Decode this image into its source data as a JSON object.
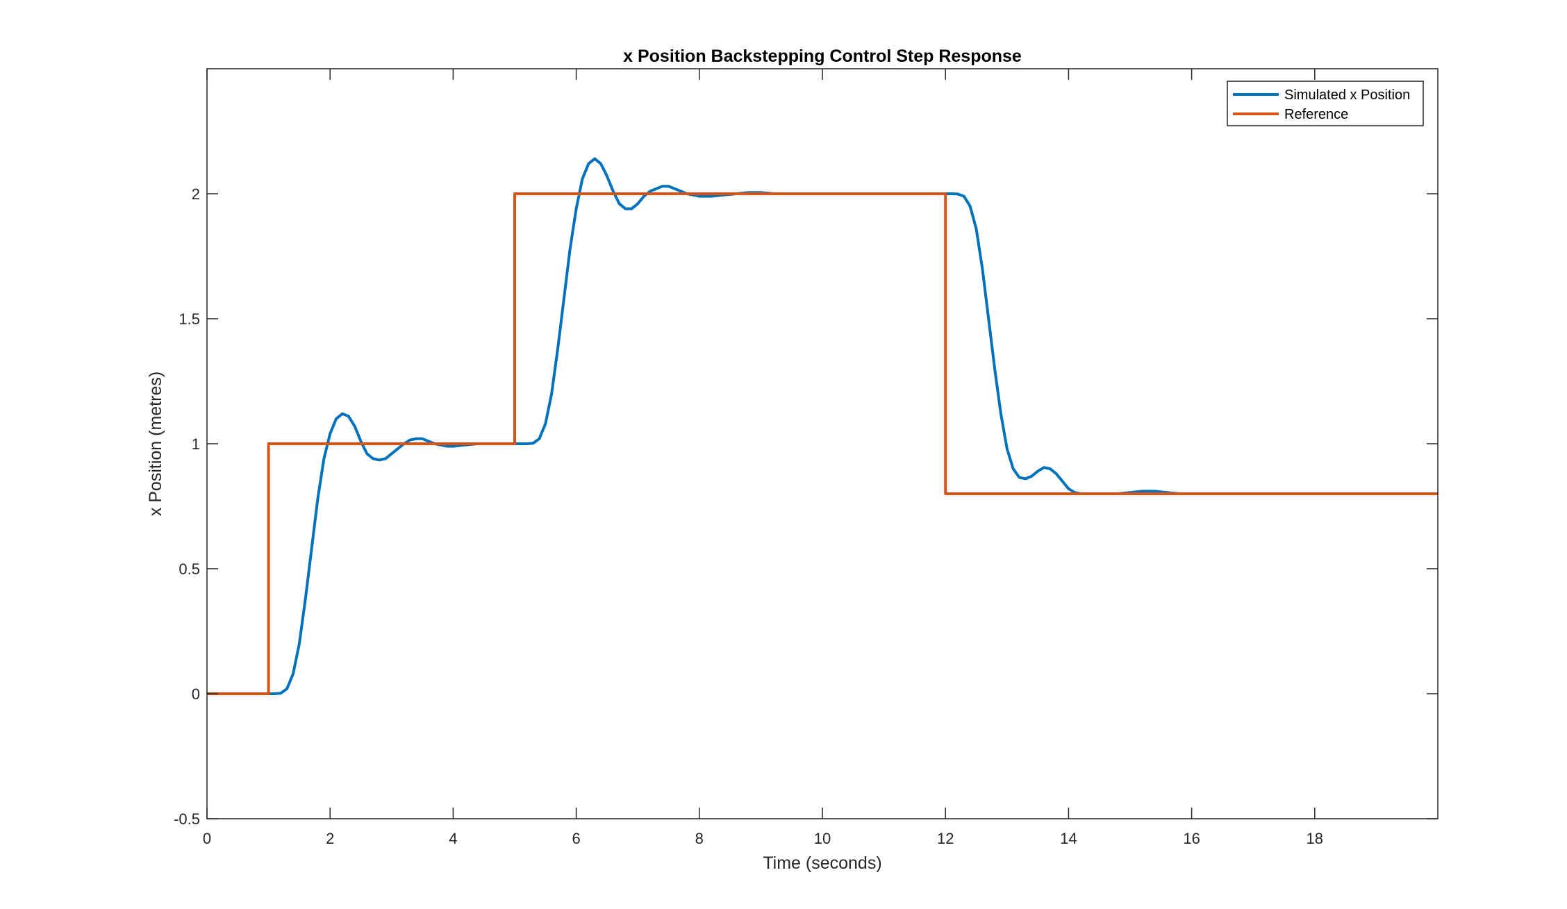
{
  "chart_data": {
    "type": "line",
    "title": "x Position Backstepping Control Step Response",
    "xlabel": "Time (seconds)",
    "ylabel": "x Position (metres)",
    "xlim": [
      0,
      20
    ],
    "ylim": [
      -0.5,
      2.5
    ],
    "xticks": [
      0,
      2,
      4,
      6,
      8,
      10,
      12,
      14,
      16,
      18
    ],
    "yticks": [
      -0.5,
      0,
      0.5,
      1,
      1.5,
      2
    ],
    "xtick_labels": [
      "0",
      "2",
      "4",
      "6",
      "8",
      "10",
      "12",
      "14",
      "16",
      "18"
    ],
    "ytick_labels": [
      "-0.5",
      "0",
      "0.5",
      "1",
      "1.5",
      "2"
    ],
    "grid": false,
    "legend_position": "top-right",
    "series": [
      {
        "name": "Simulated x Position",
        "color": "#0072BD",
        "x": [
          0,
          1.0,
          1.1,
          1.2,
          1.3,
          1.4,
          1.5,
          1.6,
          1.7,
          1.8,
          1.9,
          2.0,
          2.1,
          2.2,
          2.3,
          2.4,
          2.5,
          2.6,
          2.7,
          2.8,
          2.9,
          3.0,
          3.1,
          3.2,
          3.3,
          3.4,
          3.5,
          3.6,
          3.7,
          3.8,
          3.9,
          4.0,
          4.2,
          4.4,
          4.6,
          4.8,
          5.0,
          5.1,
          5.2,
          5.3,
          5.4,
          5.5,
          5.6,
          5.7,
          5.8,
          5.9,
          6.0,
          6.1,
          6.2,
          6.3,
          6.4,
          6.5,
          6.6,
          6.7,
          6.8,
          6.9,
          7.0,
          7.1,
          7.2,
          7.3,
          7.4,
          7.5,
          7.6,
          7.7,
          7.8,
          7.9,
          8.0,
          8.2,
          8.4,
          8.6,
          8.8,
          9.0,
          9.2,
          9.4,
          9.6,
          9.8,
          10.0,
          11.0,
          12.0,
          12.1,
          12.2,
          12.3,
          12.4,
          12.5,
          12.6,
          12.7,
          12.8,
          12.9,
          13.0,
          13.1,
          13.2,
          13.3,
          13.4,
          13.5,
          13.6,
          13.7,
          13.8,
          13.9,
          14.0,
          14.1,
          14.2,
          14.3,
          14.4,
          14.5,
          14.6,
          14.7,
          14.8,
          15.0,
          15.2,
          15.4,
          15.6,
          15.8,
          16.0,
          16.4,
          16.8,
          17.2,
          17.6,
          18.0,
          19.0,
          20.0
        ],
        "y": [
          0,
          0,
          0.0,
          0.002,
          0.02,
          0.08,
          0.2,
          0.38,
          0.58,
          0.78,
          0.94,
          1.04,
          1.1,
          1.12,
          1.11,
          1.07,
          1.01,
          0.96,
          0.94,
          0.935,
          0.94,
          0.96,
          0.98,
          1.0,
          1.015,
          1.02,
          1.02,
          1.01,
          1.0,
          0.995,
          0.99,
          0.99,
          0.995,
          1.0,
          1.0,
          1.0,
          1.0,
          1.0,
          1.0,
          1.002,
          1.02,
          1.08,
          1.2,
          1.38,
          1.58,
          1.78,
          1.94,
          2.06,
          2.12,
          2.14,
          2.12,
          2.07,
          2.01,
          1.96,
          1.94,
          1.94,
          1.96,
          1.99,
          2.01,
          2.02,
          2.03,
          2.03,
          2.02,
          2.01,
          2.0,
          1.995,
          1.99,
          1.99,
          1.995,
          2.0,
          2.005,
          2.005,
          2.0,
          2.0,
          2.0,
          2.0,
          2.0,
          2.0,
          2.0,
          2.0,
          1.999,
          1.99,
          1.95,
          1.86,
          1.7,
          1.5,
          1.3,
          1.12,
          0.98,
          0.9,
          0.865,
          0.86,
          0.87,
          0.89,
          0.905,
          0.9,
          0.88,
          0.85,
          0.82,
          0.805,
          0.8,
          0.8,
          0.8,
          0.8,
          0.8,
          0.8,
          0.8,
          0.805,
          0.81,
          0.81,
          0.805,
          0.8,
          0.8,
          0.8,
          0.8,
          0.8,
          0.8,
          0.8,
          0.8,
          0.8
        ]
      },
      {
        "name": "Reference",
        "color": "#D95319",
        "x": [
          0,
          1,
          1,
          5,
          5,
          12,
          12,
          20
        ],
        "y": [
          0,
          0,
          1,
          1,
          2,
          2,
          0.8,
          0.8
        ]
      }
    ]
  }
}
